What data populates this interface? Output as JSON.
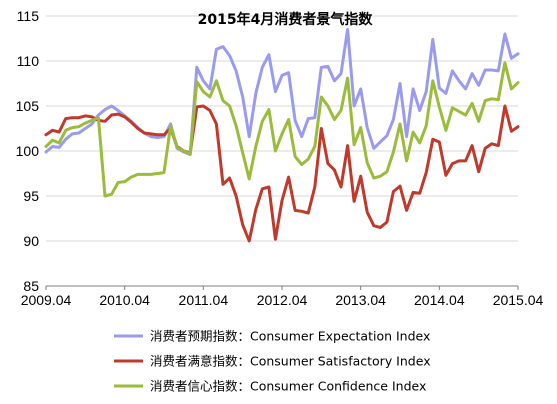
{
  "chart_data": {
    "type": "line",
    "title": "2015年4月消费者景气指数",
    "xlabel": "",
    "ylabel": "",
    "ylim": [
      85,
      115
    ],
    "yticks": [
      85,
      90,
      95,
      100,
      105,
      110,
      115
    ],
    "xlim": [
      "2009.04",
      "2015.04"
    ],
    "xticks": [
      "2009.04",
      "2010.04",
      "2011.04",
      "2012.04",
      "2013.04",
      "2014.04",
      "2015.04"
    ],
    "grid": "horizontal",
    "legend_position": "bottom",
    "x": [
      "2009.04",
      "2009.05",
      "2009.06",
      "2009.07",
      "2009.08",
      "2009.09",
      "2009.10",
      "2009.11",
      "2009.12",
      "2010.01",
      "2010.02",
      "2010.03",
      "2010.04",
      "2010.05",
      "2010.06",
      "2010.07",
      "2010.08",
      "2010.09",
      "2010.10",
      "2010.11",
      "2010.12",
      "2011.01",
      "2011.02",
      "2011.03",
      "2011.04",
      "2011.05",
      "2011.06",
      "2011.07",
      "2011.08",
      "2011.09",
      "2011.10",
      "2011.11",
      "2011.12",
      "2012.01",
      "2012.02",
      "2012.03",
      "2012.04",
      "2012.05",
      "2012.06",
      "2012.07",
      "2012.08",
      "2012.09",
      "2012.10",
      "2012.11",
      "2012.12",
      "2013.01",
      "2013.02",
      "2013.03",
      "2013.04",
      "2013.05",
      "2013.06",
      "2013.07",
      "2013.08",
      "2013.09",
      "2013.10",
      "2013.11",
      "2013.12",
      "2014.01",
      "2014.02",
      "2014.03",
      "2014.04",
      "2014.05",
      "2014.06",
      "2014.07",
      "2014.08",
      "2014.09",
      "2014.10",
      "2014.11",
      "2014.12",
      "2015.01",
      "2015.02",
      "2015.03",
      "2015.04"
    ],
    "series": [
      {
        "name": "消费者预期指数：Consumer Expectation Index",
        "color": "#9a9af0",
        "values": [
          99.9,
          100.5,
          100.4,
          101.3,
          101.9,
          102.0,
          102.5,
          103.0,
          104.0,
          104.6,
          105.0,
          104.5,
          103.9,
          103.3,
          102.6,
          102.0,
          101.6,
          101.5,
          101.6,
          103.0,
          100.3,
          99.9,
          99.6,
          109.3,
          107.8,
          106.9,
          111.3,
          111.6,
          110.6,
          108.9,
          106.0,
          101.6,
          106.4,
          109.3,
          110.7,
          106.6,
          108.4,
          108.7,
          103.4,
          101.6,
          103.6,
          103.7,
          109.3,
          109.4,
          107.8,
          108.6,
          113.5,
          105.0,
          106.9,
          102.6,
          100.3,
          101.0,
          101.7,
          103.5,
          107.5,
          101.6,
          106.9,
          104.5,
          106.6,
          112.4,
          107.0,
          106.4,
          108.9,
          107.8,
          106.9,
          108.6,
          107.3,
          109.0,
          109.0,
          108.9,
          113.0,
          110.3,
          110.8
        ]
      },
      {
        "name": "消费者满意指数：Consumer Satisfactory Index",
        "color": "#c0392b",
        "values": [
          101.8,
          102.3,
          102.1,
          103.6,
          103.7,
          103.7,
          103.9,
          103.8,
          103.4,
          103.3,
          104.0,
          104.1,
          103.8,
          103.2,
          102.5,
          102.0,
          101.9,
          101.8,
          101.8,
          102.5,
          100.5,
          100.0,
          99.8,
          104.9,
          105.0,
          104.5,
          103.0,
          96.3,
          97.0,
          95.0,
          91.8,
          90.0,
          93.5,
          95.8,
          96.0,
          90.2,
          94.5,
          97.1,
          93.4,
          93.3,
          93.1,
          96.0,
          102.5,
          98.6,
          97.9,
          96.0,
          100.6,
          94.4,
          97.2,
          93.2,
          91.7,
          91.5,
          92.1,
          95.5,
          96.1,
          93.4,
          95.4,
          95.3,
          97.6,
          101.3,
          101.0,
          97.3,
          98.6,
          98.9,
          98.9,
          100.6,
          97.7,
          100.3,
          100.8,
          100.6,
          105.0,
          102.2,
          102.7
        ]
      },
      {
        "name": "消费者信心指数：Consumer Confidence Index",
        "color": "#9bbb3b",
        "values": [
          100.5,
          101.2,
          100.9,
          102.3,
          102.6,
          102.7,
          103.1,
          103.4,
          103.7,
          95.0,
          95.2,
          96.5,
          96.6,
          97.1,
          97.4,
          97.4,
          97.4,
          97.5,
          97.6,
          102.8,
          100.4,
          100.0,
          99.7,
          107.7,
          106.6,
          106.0,
          107.8,
          105.6,
          105.0,
          102.8,
          99.8,
          96.9,
          100.5,
          103.3,
          104.6,
          100.0,
          101.9,
          103.5,
          99.4,
          98.5,
          99.1,
          100.5,
          106.0,
          105.0,
          103.5,
          104.5,
          108.1,
          100.7,
          102.6,
          98.7,
          97.0,
          97.2,
          97.7,
          99.9,
          103.0,
          98.9,
          102.1,
          100.9,
          102.8,
          107.8,
          104.9,
          102.3,
          104.8,
          104.4,
          104.0,
          105.3,
          103.3,
          105.6,
          105.8,
          105.7,
          109.8,
          106.9,
          107.6
        ]
      }
    ]
  }
}
